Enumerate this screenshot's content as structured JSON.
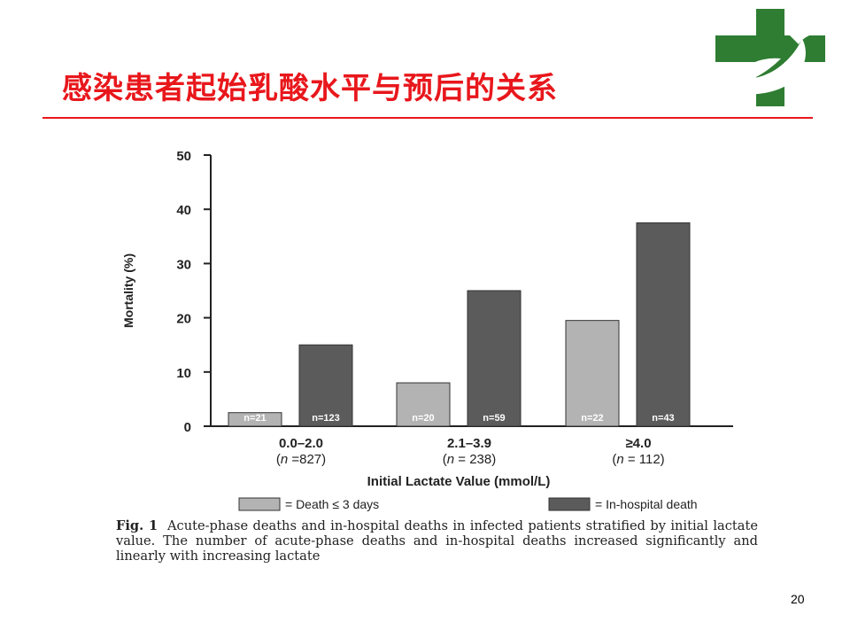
{
  "slide": {
    "title": "感染患者起始乳酸水平与预后的关系",
    "page_number": "20",
    "accent_color": "#e8171c"
  },
  "logo": {
    "icon": "hospital-cross-bird-logo",
    "color": "#2e7d32"
  },
  "chart_data": {
    "type": "bar",
    "ylabel": "Mortality (%)",
    "xlabel": "Initial Lactate Value (mmol/L)",
    "ylim": [
      0,
      50
    ],
    "yticks": [
      "0",
      "10",
      "20",
      "30",
      "40",
      "50"
    ],
    "categories": [
      {
        "label": "0.0–2.0",
        "n_prefix": "(",
        "n_var": "n",
        "n_suffix": " =827)"
      },
      {
        "label": "2.1–3.9",
        "n_prefix": "(",
        "n_var": "n",
        "n_suffix": " = 238)"
      },
      {
        "label": "≥4.0",
        "n_prefix": "(",
        "n_var": "n",
        "n_suffix": " = 112)"
      }
    ],
    "series": [
      {
        "name": "= Death ≤ 3 days",
        "color": "#b3b3b3",
        "values": [
          2.5,
          8,
          19.5
        ],
        "bar_labels": [
          "n=21",
          "n=20",
          "n=22"
        ]
      },
      {
        "name": "= In-hospital death",
        "color": "#5b5b5b",
        "values": [
          15,
          25,
          37.5
        ],
        "bar_labels": [
          "n=123",
          "n=59",
          "n=43"
        ]
      }
    ],
    "legend_position": "bottom",
    "grid": false
  },
  "caption": {
    "label": "Fig. 1",
    "text": "Acute-phase deaths and in-hospital deaths in infected patients stratified by initial lactate value. The number of acute-phase deaths and in-hospital deaths increased significantly and linearly with increasing lactate"
  }
}
